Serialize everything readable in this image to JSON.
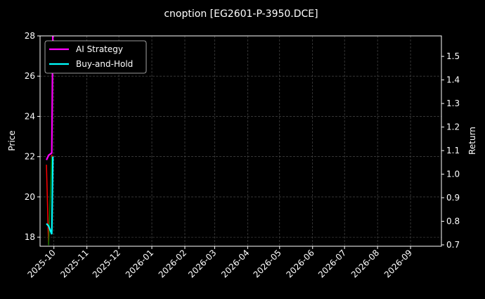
{
  "chart_data": {
    "type": "line",
    "title": "cnoption [EG2601-P-3950.DCE]",
    "ylabel": "Price",
    "y2label": "Return",
    "ylim": [
      17.55,
      28
    ],
    "y2lim": [
      0.694,
      1.587
    ],
    "xlim": [
      "2025-09-18",
      "2026-09-30"
    ],
    "yticks": [
      18,
      20,
      22,
      24,
      26,
      28
    ],
    "y2ticks": [
      0.7,
      0.8,
      0.9,
      1.0,
      1.1,
      1.2,
      1.3,
      1.4,
      1.5
    ],
    "xticks": [
      "2025-10",
      "2025-11",
      "2025-12",
      "2026-01",
      "2026-02",
      "2026-03",
      "2026-04",
      "2026-05",
      "2026-06",
      "2026-07",
      "2026-08",
      "2026-09"
    ],
    "grid": true,
    "legend_placement": "top-left",
    "x": [
      "2025-09-24",
      "2025-09-26",
      "2025-09-29",
      "2025-09-30"
    ],
    "price": {
      "values": [
        21.6,
        17.6,
        22.1,
        21.8
      ],
      "up_color": "#008000",
      "down_color": "#ff0000"
    },
    "series": [
      {
        "name": "AI Strategy",
        "axis": "right",
        "color": "#ff00ff",
        "values": [
          1.06,
          1.08,
          1.09,
          1.6
        ]
      },
      {
        "name": "Buy-and-Hold",
        "axis": "right",
        "color": "#00ffff",
        "values": [
          0.79,
          0.78,
          0.745,
          1.075
        ]
      }
    ]
  }
}
